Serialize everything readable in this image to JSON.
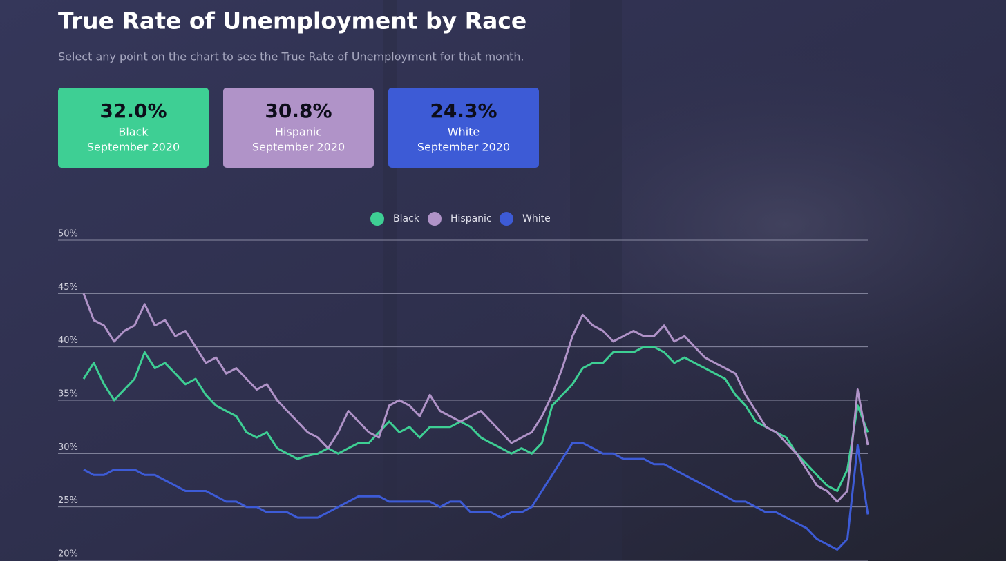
{
  "cards": [
    {
      "value": "32.0%",
      "name": "Black",
      "date": "September 2020"
    },
    {
      "value": "30.8%",
      "name": "Hispanic",
      "date": "September 2020"
    },
    {
      "value": "24.3%",
      "name": "White",
      "date": "September 2020"
    }
  ],
  "chart_data": {
    "type": "line",
    "title": "True Rate of Unemployment by Race",
    "subtitle": "Select any point on the chart to see the True Rate of Unemployment for that month.",
    "categories": [
      null,
      null,
      null,
      null,
      null,
      null,
      null,
      null,
      null,
      null,
      null,
      null,
      null,
      null,
      null,
      null,
      null,
      null,
      null,
      null,
      null,
      null,
      null,
      null,
      null,
      null,
      null,
      null,
      null,
      null,
      null,
      null,
      null,
      null,
      null,
      null,
      null,
      null,
      null,
      null,
      null,
      null,
      null,
      null,
      null,
      null,
      null,
      null,
      null,
      null,
      null,
      null,
      null,
      null,
      null,
      null,
      null,
      null,
      null,
      null,
      null,
      null,
      null,
      null,
      null,
      null,
      null,
      null,
      null,
      null,
      null,
      null,
      null,
      null,
      null,
      null,
      null,
      null
    ],
    "series": [
      {
        "name": "Black",
        "color": "#3ecf94",
        "values": [
          37,
          38.5,
          36.5,
          35,
          36,
          37,
          39.5,
          38,
          38.5,
          37.5,
          36.5,
          37,
          35.5,
          34.5,
          34,
          33.5,
          32,
          31.5,
          32,
          30.5,
          30,
          29.5,
          29.8,
          30,
          30.5,
          30,
          30.5,
          31,
          31,
          32,
          33,
          32,
          32.5,
          31.5,
          32.5,
          32.5,
          32.5,
          33,
          32.5,
          31.5,
          31,
          30.5,
          30,
          30.5,
          30,
          31,
          34.5,
          35.5,
          36.5,
          38,
          38.5,
          38.5,
          39.5,
          39.5,
          39.5,
          40,
          40,
          39.5,
          38.5,
          39,
          38.5,
          38,
          37.5,
          37,
          35.5,
          34.5,
          33,
          32.5,
          32,
          31.5,
          30,
          29,
          28,
          27,
          26.5,
          28.5,
          34.5,
          32.0
        ]
      },
      {
        "name": "Hispanic",
        "color": "#b093c8",
        "values": [
          45,
          42.5,
          42,
          40.5,
          41.5,
          42,
          44,
          42,
          42.5,
          41,
          41.5,
          40,
          38.5,
          39,
          37.5,
          38,
          37,
          36,
          36.5,
          35,
          34,
          33,
          32,
          31.5,
          30.5,
          32,
          34,
          33,
          32,
          31.5,
          34.5,
          35,
          34.5,
          33.5,
          35.5,
          34,
          33.5,
          33,
          33.5,
          34,
          33,
          32,
          31,
          31.5,
          32,
          33.5,
          35.5,
          38,
          41,
          43,
          42,
          41.5,
          40.5,
          41,
          41.5,
          41,
          41,
          42,
          40.5,
          41,
          40,
          39,
          38.5,
          38,
          37.5,
          35.5,
          34,
          32.5,
          32,
          31,
          30,
          28.5,
          27,
          26.5,
          25.5,
          26.5,
          36,
          30.8
        ]
      },
      {
        "name": "White",
        "color": "#3d5bd6",
        "values": [
          28.5,
          28,
          28,
          28.5,
          28.5,
          28.5,
          28,
          28,
          27.5,
          27,
          26.5,
          26.5,
          26.5,
          26,
          25.5,
          25.5,
          25,
          25,
          24.5,
          24.5,
          24.5,
          24,
          24,
          24,
          24.5,
          25,
          25.5,
          26,
          26,
          26,
          25.5,
          25.5,
          25.5,
          25.5,
          25.5,
          25,
          25.5,
          25.5,
          24.5,
          24.5,
          24.5,
          24,
          24.5,
          24.5,
          25,
          26.5,
          28,
          29.5,
          31,
          31,
          30.5,
          30,
          30,
          29.5,
          29.5,
          29.5,
          29,
          29,
          28.5,
          28,
          27.5,
          27,
          26.5,
          26,
          25.5,
          25.5,
          25,
          24.5,
          24.5,
          24,
          23.5,
          23,
          22,
          21.5,
          21,
          22,
          30.8,
          24.3
        ]
      }
    ],
    "ylim": [
      20,
      50
    ],
    "yticks": [
      {
        "value": 20,
        "label": "20%"
      },
      {
        "value": 25,
        "label": "25%"
      },
      {
        "value": 30,
        "label": "30%"
      },
      {
        "value": 35,
        "label": "35%"
      },
      {
        "value": 40,
        "label": "40%"
      },
      {
        "value": 45,
        "label": "45%"
      },
      {
        "value": 50,
        "label": "50%"
      }
    ],
    "grid": true,
    "legend": "top"
  }
}
